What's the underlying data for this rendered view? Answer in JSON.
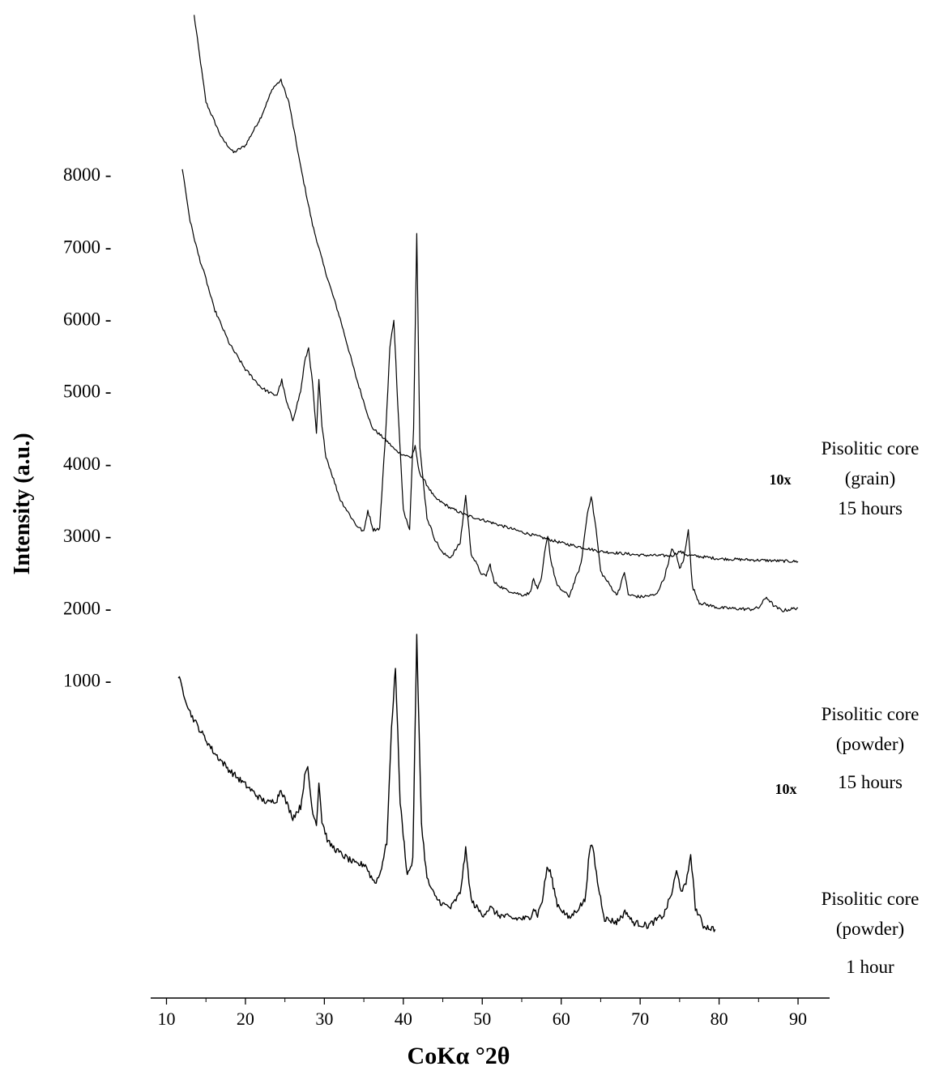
{
  "chart_data": {
    "type": "line",
    "xlabel": "CoKα °2θ",
    "ylabel": "Intensity (a.u.)",
    "xlim": [
      8,
      94
    ],
    "x_ticks": [
      10,
      20,
      30,
      40,
      50,
      60,
      70,
      80,
      90
    ],
    "x_tick_labels": [
      "10",
      "20",
      "30",
      "40",
      "50",
      "60",
      "70",
      "80",
      "90"
    ],
    "ylim": [
      -3400,
      10300
    ],
    "y_ticks": [
      1000,
      2000,
      3000,
      4000,
      5000,
      6000,
      7000,
      8000
    ],
    "y_tick_labels": [
      "1000 -",
      "2000 -",
      "3000 -",
      "4000 -",
      "5000 -",
      "6000 -",
      "7000 -",
      "8000 -"
    ],
    "grid": false,
    "legend": "none",
    "series": [
      {
        "labels": [
          "Pisolitic core",
          "(grain)",
          "15 hours"
        ],
        "multiplier_label": "10x",
        "x": [
          13.5,
          15,
          17,
          18.5,
          20,
          22,
          23.5,
          24.5,
          25.5,
          27,
          28.5,
          30,
          32,
          34,
          36,
          38,
          39,
          40,
          41,
          41.5,
          42,
          44,
          46,
          48,
          50,
          55,
          60,
          65,
          70,
          74,
          75,
          76,
          80,
          85,
          90
        ],
        "y": [
          10200,
          9000,
          8500,
          8300,
          8400,
          8800,
          9200,
          9300,
          9000,
          8100,
          7300,
          6700,
          6000,
          5200,
          4500,
          4300,
          4180,
          4120,
          4080,
          4230,
          3880,
          3520,
          3380,
          3280,
          3220,
          3050,
          2900,
          2780,
          2730,
          2720,
          2780,
          2730,
          2680,
          2660,
          2640
        ]
      },
      {
        "labels": [
          "Pisolitic core",
          "(powder)",
          "15 hours"
        ],
        "multiplier_label": "10x",
        "x": [
          12,
          13,
          14,
          15,
          16,
          18,
          20,
          22,
          23.5,
          24,
          24.6,
          25.2,
          26,
          27,
          27.5,
          28,
          28.5,
          29,
          29.3,
          29.7,
          30.2,
          32,
          34,
          35,
          35.5,
          36.2,
          37,
          37.8,
          38.3,
          38.8,
          39.3,
          40,
          40.8,
          41.3,
          41.7,
          42.1,
          43,
          44,
          45,
          46,
          47.2,
          47.9,
          48.6,
          50,
          50.5,
          51,
          51.5,
          53,
          55,
          56,
          56.5,
          57,
          57.5,
          58,
          58.3,
          58.7,
          59.5,
          61,
          62.5,
          63.3,
          63.8,
          64.4,
          65,
          67,
          67.5,
          68,
          68.5,
          70,
          72,
          73,
          74,
          74.5,
          75,
          75.5,
          76.1,
          76.6,
          77.5,
          80,
          84,
          85,
          86,
          87,
          88,
          90
        ],
        "y": [
          8080,
          7350,
          6900,
          6550,
          6150,
          5650,
          5300,
          5050,
          4950,
          4950,
          5150,
          4850,
          4600,
          5000,
          5400,
          5600,
          5100,
          4400,
          5150,
          4500,
          4100,
          3500,
          3150,
          3050,
          3350,
          3080,
          3100,
          4500,
          5600,
          6000,
          4800,
          3350,
          3100,
          4500,
          7200,
          4200,
          3250,
          2950,
          2750,
          2700,
          2900,
          3550,
          2750,
          2450,
          2450,
          2600,
          2350,
          2250,
          2180,
          2200,
          2400,
          2250,
          2400,
          2850,
          3000,
          2650,
          2300,
          2160,
          2600,
          3300,
          3550,
          3100,
          2500,
          2180,
          2300,
          2500,
          2180,
          2150,
          2180,
          2400,
          2800,
          2750,
          2550,
          2650,
          3100,
          2300,
          2070,
          2000,
          1980,
          2000,
          2150,
          2020,
          1960,
          2000
        ]
      },
      {
        "labels": [
          "Pisolitic core",
          "(powder)",
          "1 hour"
        ],
        "x": [
          11.5,
          13,
          14,
          16,
          18,
          20,
          22,
          23,
          24,
          24.5,
          25,
          26,
          27,
          27.5,
          27.9,
          28.4,
          29,
          29.3,
          29.7,
          30.5,
          32,
          34,
          35.2,
          35.8,
          36.4,
          37,
          37.9,
          38.5,
          39,
          39.6,
          40.5,
          41.2,
          41.7,
          42.3,
          43,
          44,
          45,
          46,
          47.2,
          47.9,
          48.6,
          50,
          51,
          52,
          54,
          56,
          56.5,
          57,
          57.6,
          58.2,
          58.6,
          59.5,
          61,
          63,
          63.6,
          64,
          64.6,
          65.5,
          67,
          68.2,
          69,
          71,
          73,
          74,
          74.6,
          75.2,
          75.8,
          76.4,
          77,
          78,
          79.5
        ],
        "y": [
          1050,
          550,
          350,
          0,
          -250,
          -450,
          -650,
          -700,
          -650,
          -500,
          -650,
          -900,
          -750,
          -350,
          -200,
          -750,
          -1000,
          -400,
          -950,
          -1250,
          -1400,
          -1550,
          -1550,
          -1700,
          -1800,
          -1700,
          -1250,
          300,
          1200,
          -700,
          -1700,
          -1500,
          1600,
          -1000,
          -1750,
          -2000,
          -2100,
          -2150,
          -1950,
          -1350,
          -2050,
          -2250,
          -2150,
          -2250,
          -2300,
          -2300,
          -2150,
          -2250,
          -2050,
          -1600,
          -1650,
          -2100,
          -2300,
          -2050,
          -1350,
          -1300,
          -1800,
          -2300,
          -2350,
          -2200,
          -2350,
          -2400,
          -2250,
          -1950,
          -1650,
          -1900,
          -1850,
          -1400,
          -2150,
          -2400,
          -2450
        ]
      }
    ]
  }
}
